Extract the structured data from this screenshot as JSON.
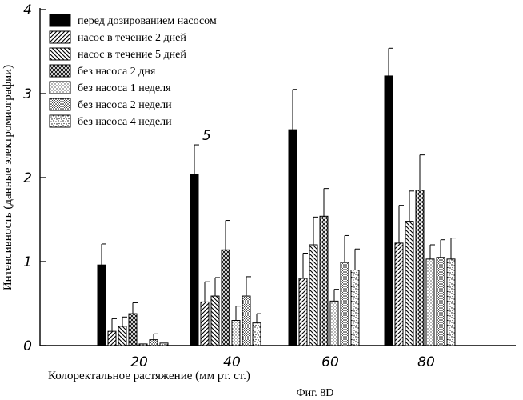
{
  "chart_data": {
    "type": "bar",
    "categories": [
      "20",
      "40",
      "60",
      "80"
    ],
    "ylim": [
      0,
      4
    ],
    "yticks": [
      "0",
      "1",
      "2",
      "3",
      "4"
    ],
    "xlabel": "Колоректальное растяжение (мм рт. ст.)",
    "ylabel": "Интенсивность (данные электромиографии)",
    "annotation": "5",
    "caption": "Фиг. 8D",
    "legend_position": "top-left",
    "series": [
      {
        "name": "перед дозированием насосом",
        "pattern": "solid",
        "values": [
          0.96,
          2.04,
          2.57,
          3.21
        ],
        "errors": [
          0.25,
          0.35,
          0.48,
          0.33
        ]
      },
      {
        "name": "насос в течение 2 дней",
        "pattern": "forward-hatch",
        "values": [
          0.17,
          0.52,
          0.8,
          1.22
        ],
        "errors": [
          0.15,
          0.24,
          0.3,
          0.45
        ]
      },
      {
        "name": "насос в течение 5 дней",
        "pattern": "back-hatch",
        "values": [
          0.23,
          0.59,
          1.2,
          1.48
        ],
        "errors": [
          0.11,
          0.22,
          0.33,
          0.36
        ]
      },
      {
        "name": "без насоса 2 дня",
        "pattern": "cross-hatch",
        "values": [
          0.38,
          1.14,
          1.54,
          1.85
        ],
        "errors": [
          0.13,
          0.35,
          0.33,
          0.42
        ]
      },
      {
        "name": "без насоса 1 неделя",
        "pattern": "fine-dots",
        "values": [
          0.02,
          0.3,
          0.53,
          1.03
        ],
        "errors": [
          0.0,
          0.17,
          0.14,
          0.17
        ]
      },
      {
        "name": "без насоса 2 недели",
        "pattern": "dense-dots",
        "values": [
          0.07,
          0.59,
          0.99,
          1.05
        ],
        "errors": [
          0.07,
          0.23,
          0.32,
          0.21
        ]
      },
      {
        "name": "без насоса 4 недели",
        "pattern": "stipple",
        "values": [
          0.03,
          0.27,
          0.9,
          1.03
        ],
        "errors": [
          0.0,
          0.11,
          0.25,
          0.25
        ]
      }
    ]
  }
}
